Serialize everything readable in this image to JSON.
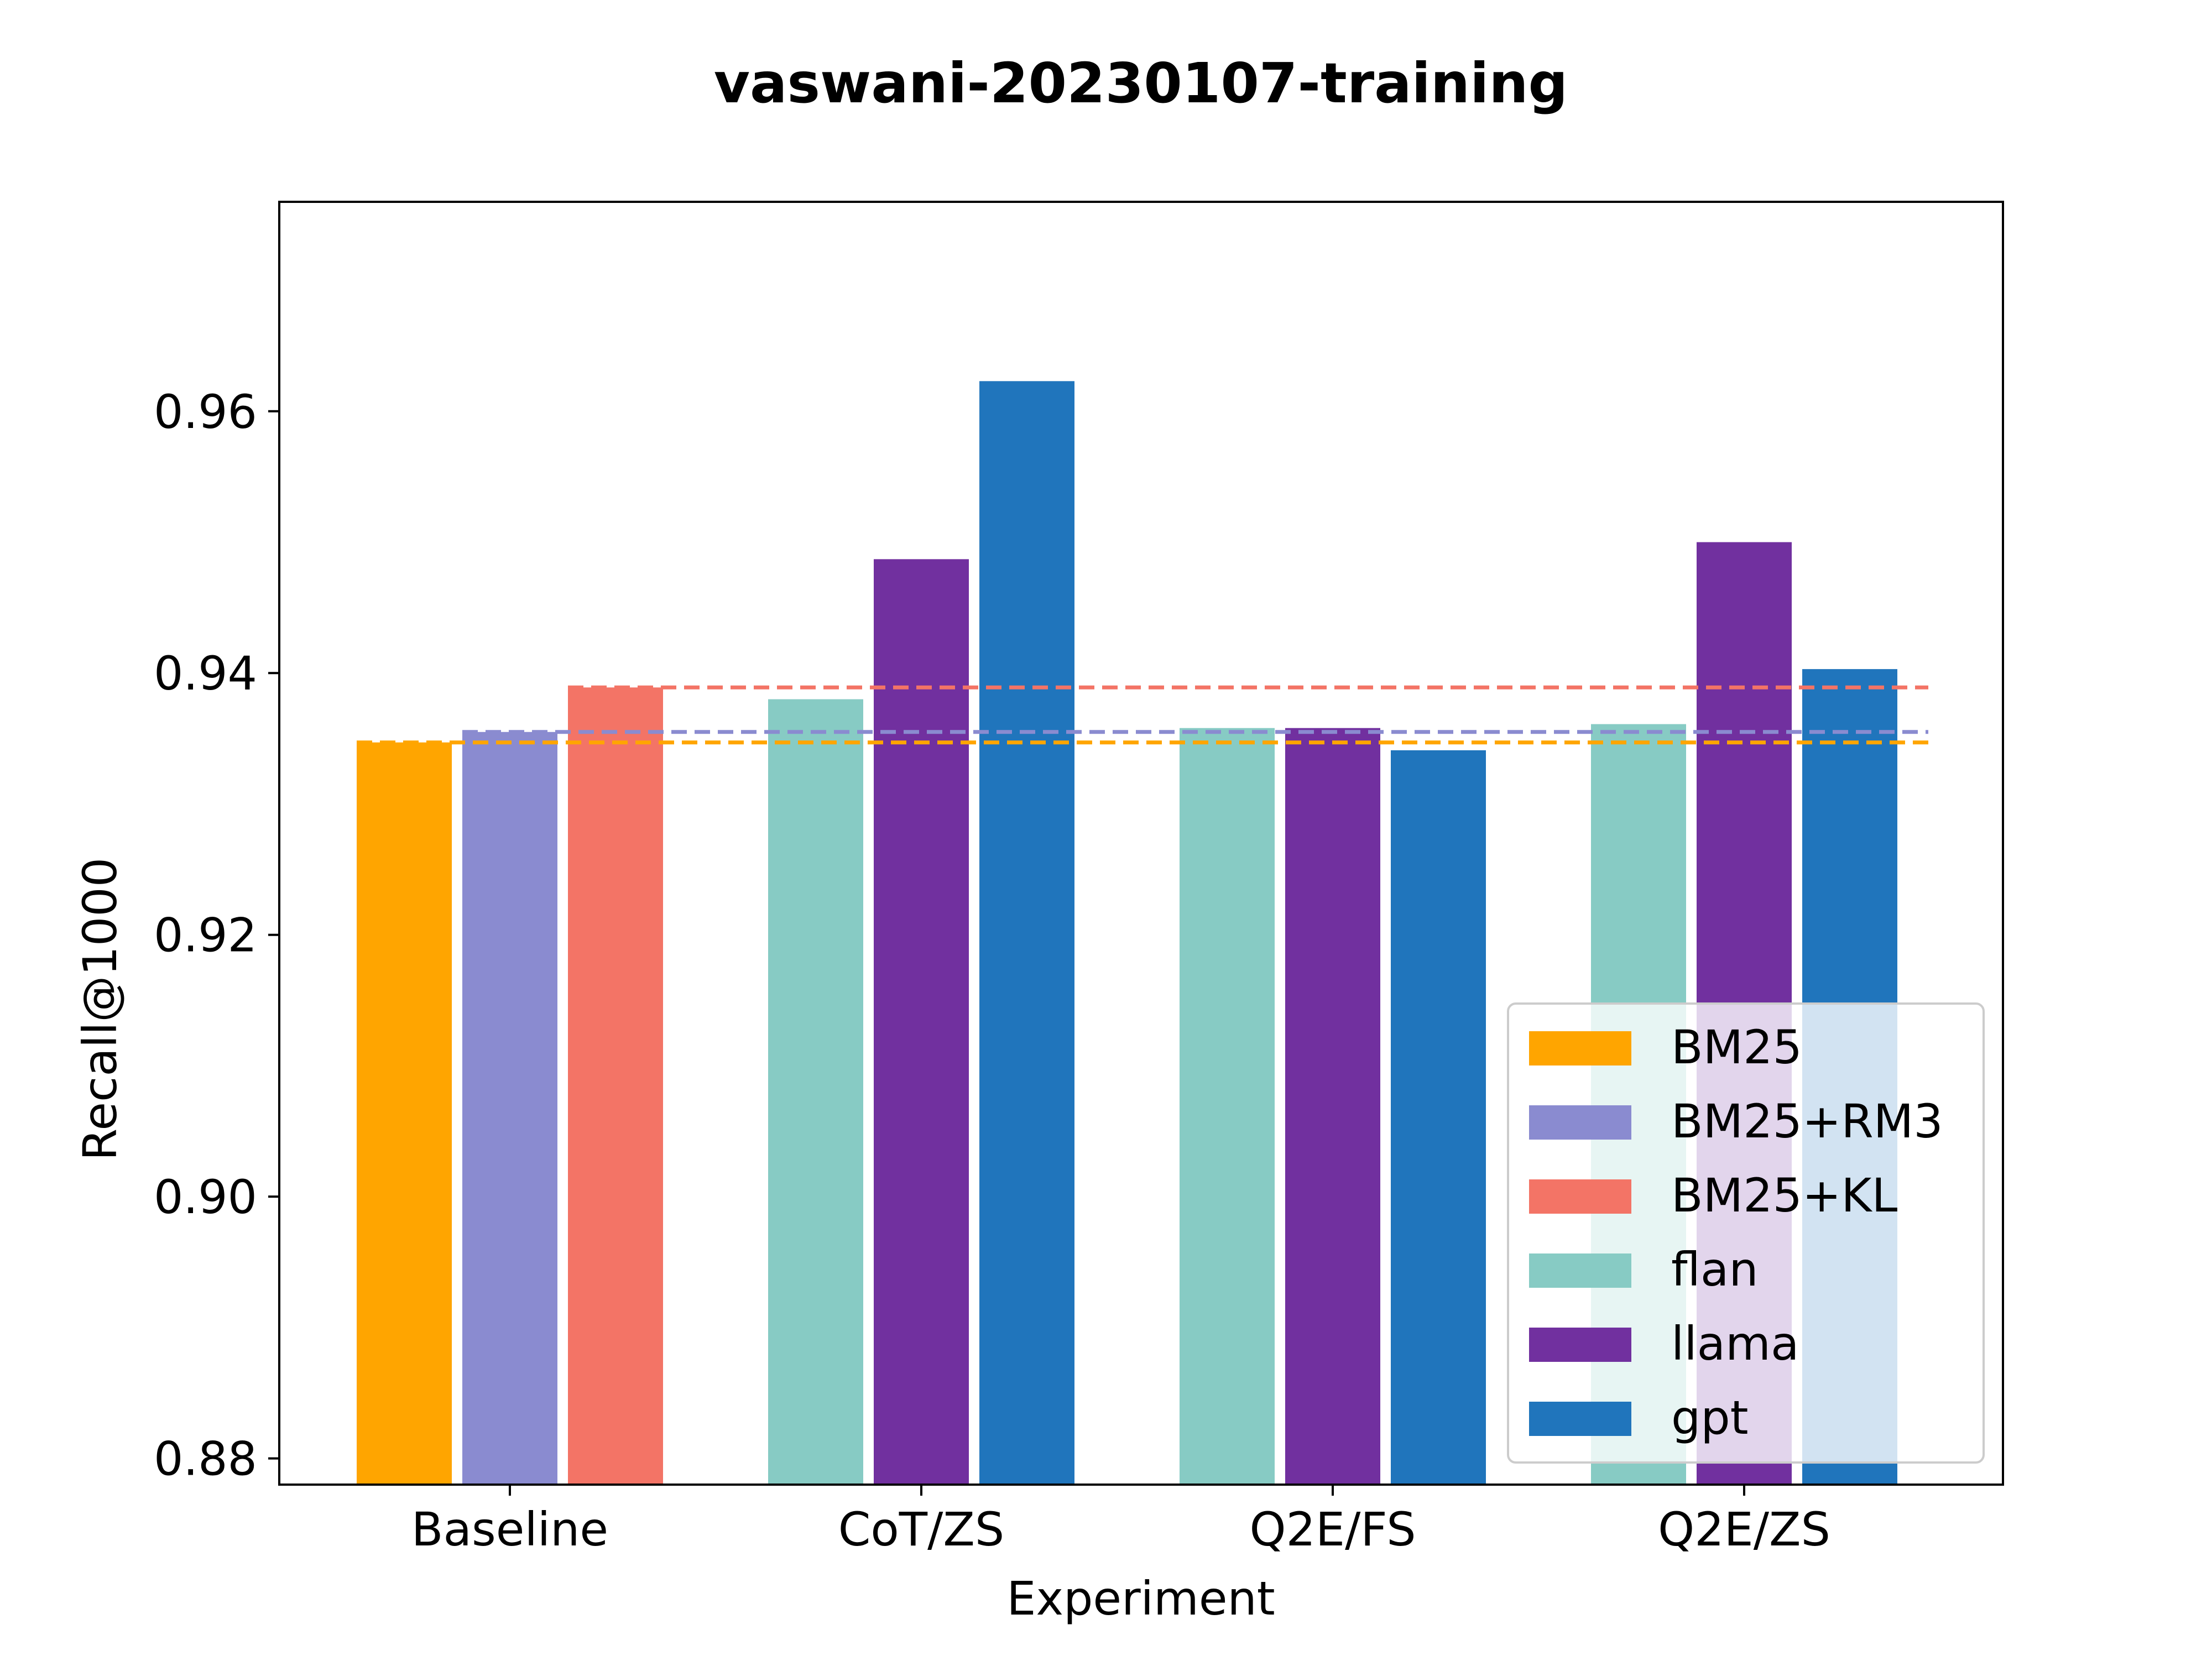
{
  "chart_data": {
    "type": "bar",
    "title": "vaswani-20230107-training",
    "xlabel": "Experiment",
    "ylabel": "Recall@1000",
    "ylim": [
      0.878,
      0.976
    ],
    "yticks": [
      "0.88",
      "0.90",
      "0.92",
      "0.94",
      "0.96"
    ],
    "ytick_values": [
      0.88,
      0.9,
      0.92,
      0.94,
      0.96
    ],
    "grid": false,
    "legend_position": "lower-right",
    "categories": [
      "Baseline",
      "CoT/ZS",
      "Q2E/FS",
      "Q2E/ZS"
    ],
    "bars": [
      {
        "category": "Baseline",
        "series": "BM25",
        "value": 0.9347
      },
      {
        "category": "Baseline",
        "series": "BM25+RM3",
        "value": 0.9355
      },
      {
        "category": "Baseline",
        "series": "BM25+KL",
        "value": 0.9389
      },
      {
        "category": "CoT/ZS",
        "series": "flan",
        "value": 0.938
      },
      {
        "category": "CoT/ZS",
        "series": "llama",
        "value": 0.9487
      },
      {
        "category": "CoT/ZS",
        "series": "gpt",
        "value": 0.9623
      },
      {
        "category": "Q2E/FS",
        "series": "flan",
        "value": 0.9358
      },
      {
        "category": "Q2E/FS",
        "series": "llama",
        "value": 0.9358
      },
      {
        "category": "Q2E/FS",
        "series": "gpt",
        "value": 0.9341
      },
      {
        "category": "Q2E/ZS",
        "series": "flan",
        "value": 0.9361
      },
      {
        "category": "Q2E/ZS",
        "series": "llama",
        "value": 0.95
      },
      {
        "category": "Q2E/ZS",
        "series": "gpt",
        "value": 0.9403
      }
    ],
    "reference_lines": [
      {
        "series": "BM25+KL",
        "value": 0.9389,
        "style": "dashed"
      },
      {
        "series": "BM25+RM3",
        "value": 0.9355,
        "style": "dashed"
      },
      {
        "series": "BM25",
        "value": 0.9347,
        "style": "dashed"
      }
    ],
    "legend": [
      {
        "name": "BM25",
        "color": "#ffa500"
      },
      {
        "name": "BM25+RM3",
        "color": "#8a8bd0"
      },
      {
        "name": "BM25+KL",
        "color": "#f37466"
      },
      {
        "name": "flan",
        "color": "#87cbc4"
      },
      {
        "name": "llama",
        "color": "#71309f"
      },
      {
        "name": "gpt",
        "color": "#2075bc"
      }
    ]
  }
}
